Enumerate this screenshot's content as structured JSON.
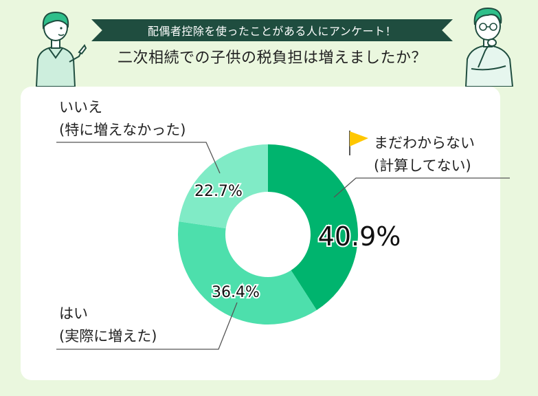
{
  "header": {
    "banner_text": "配偶者控除を使ったことがある人にアンケート！",
    "question": "二次相続での子供の税負担は増えましたか？"
  },
  "chart_data": {
    "type": "pie",
    "donut": true,
    "slices": [
      {
        "label_line1": "まだわからない",
        "label_line2": "(計算してない)",
        "value": 40.9,
        "value_label": "40.9%",
        "color": "#00b46e"
      },
      {
        "label_line1": "はい",
        "label_line2": "(実際に増えた)",
        "value": 36.4,
        "value_label": "36.4%",
        "color": "#4ddfac"
      },
      {
        "label_line1": "いいえ",
        "label_line2": "(特に増えなかった)",
        "value": 22.7,
        "value_label": "22.7%",
        "color": "#80ebc6"
      }
    ]
  },
  "colors": {
    "banner_bg": "#1f4d3f",
    "background": "#eaf7de",
    "flag": "#ffc700"
  },
  "icons": [
    "pointing-woman-illustration",
    "thinking-man-illustration",
    "flag-icon"
  ]
}
